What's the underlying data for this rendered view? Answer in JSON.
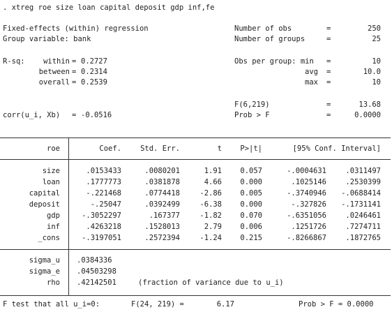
{
  "command": ". xtreg roe size loan capital deposit gdp inf,fe",
  "header": {
    "left": [
      {
        "label": "Fixed-effects (within) regression",
        "value": ""
      },
      {
        "label": "Group variable: bank",
        "value": ""
      }
    ],
    "rsq_label": "R-sq:",
    "rsq": [
      {
        "label": "within",
        "value": "0.2727"
      },
      {
        "label": "between",
        "value": "0.2314"
      },
      {
        "label": "overall",
        "value": "0.2539"
      }
    ],
    "corr_label": "corr(u_i, Xb)",
    "corr_value": "-0.0516",
    "right": [
      {
        "label": "Number of obs",
        "value": "250"
      },
      {
        "label": "Number of groups",
        "value": "25"
      },
      {
        "label": "Obs per group: min",
        "value": "10"
      },
      {
        "label": "avg",
        "value": "10.0"
      },
      {
        "label": "max",
        "value": "10"
      },
      {
        "label": "F(6,219)",
        "value": "13.68"
      },
      {
        "label": "Prob > F",
        "value": "0.0000"
      }
    ]
  },
  "table": {
    "depvar": "roe",
    "columns": [
      "Coef.",
      "Std. Err.",
      "t",
      "P>|t|",
      "[95% Conf. Interval]"
    ],
    "rows": [
      {
        "var": "size",
        "coef": ".0153433",
        "se": ".0080201",
        "t": "1.91",
        "p": "0.057",
        "lo": "-.0004631",
        "hi": ".0311497"
      },
      {
        "var": "loan",
        "coef": ".1777773",
        "se": ".0381878",
        "t": "4.66",
        "p": "0.000",
        "lo": ".1025146",
        "hi": ".2530399"
      },
      {
        "var": "capital",
        "coef": "-.221468",
        "se": ".0774418",
        "t": "-2.86",
        "p": "0.005",
        "lo": "-.3740946",
        "hi": "-.0688414"
      },
      {
        "var": "deposit",
        "coef": "-.25047",
        "se": ".0392499",
        "t": "-6.38",
        "p": "0.000",
        "lo": "-.327826",
        "hi": "-.1731141"
      },
      {
        "var": "gdp",
        "coef": "-.3052297",
        "se": ".167377",
        "t": "-1.82",
        "p": "0.070",
        "lo": "-.6351056",
        "hi": ".0246461"
      },
      {
        "var": "inf",
        "coef": ".4263218",
        "se": ".1528013",
        "t": "2.79",
        "p": "0.006",
        "lo": ".1251726",
        "hi": ".7274711"
      },
      {
        "var": "_cons",
        "coef": "-.3197051",
        "se": ".2572394",
        "t": "-1.24",
        "p": "0.215",
        "lo": "-.8266867",
        "hi": ".1872765"
      }
    ],
    "sigma": [
      {
        "var": "sigma_u",
        "value": ".0384336",
        "note": ""
      },
      {
        "var": "sigma_e",
        "value": ".04503298",
        "note": ""
      },
      {
        "var": "rho",
        "value": ".42142501",
        "note": "(fraction of variance due to u_i)"
      }
    ]
  },
  "ftest": {
    "label": "F test that all u_i=0:",
    "stat": "F(24, 219) =",
    "value": "6.17",
    "prob": "Prob > F = 0.0000"
  }
}
